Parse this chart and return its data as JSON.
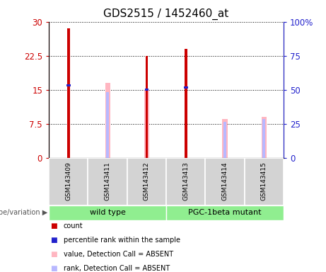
{
  "title": "GDS2515 / 1452460_at",
  "samples": [
    "GSM143409",
    "GSM143411",
    "GSM143412",
    "GSM143413",
    "GSM143414",
    "GSM143415"
  ],
  "count_values": [
    28.5,
    null,
    22.5,
    24.0,
    null,
    null
  ],
  "percentile_values": [
    16.0,
    null,
    15.0,
    15.5,
    null,
    null
  ],
  "absent_value_values": [
    null,
    16.5,
    15.0,
    null,
    8.5,
    9.0
  ],
  "absent_rank_values": [
    null,
    14.5,
    15.0,
    null,
    8.0,
    8.5
  ],
  "left_yticks": [
    0,
    7.5,
    15,
    22.5,
    30
  ],
  "left_yticklabels": [
    "0",
    "7.5",
    "15",
    "22.5",
    "30"
  ],
  "right_yticks": [
    0,
    25,
    50,
    75,
    100
  ],
  "right_yticklabels": [
    "0",
    "25",
    "50",
    "75",
    "100%"
  ],
  "ylim": [
    0,
    30
  ],
  "count_color": "#cc0000",
  "percentile_color": "#2222cc",
  "absent_value_color": "#ffb6c1",
  "absent_rank_color": "#b8b8ff",
  "axis_color_left": "#cc0000",
  "axis_color_right": "#2222cc",
  "title_fontsize": 11,
  "groups": [
    {
      "label": "wild type",
      "start": 0,
      "end": 2,
      "color": "#90EE90"
    },
    {
      "label": "PGC-1beta mutant",
      "start": 3,
      "end": 5,
      "color": "#90EE90"
    }
  ],
  "legend_items": [
    {
      "color": "#cc0000",
      "label": "count"
    },
    {
      "color": "#2222cc",
      "label": "percentile rank within the sample"
    },
    {
      "color": "#ffb6c1",
      "label": "value, Detection Call = ABSENT"
    },
    {
      "color": "#b8b8ff",
      "label": "rank, Detection Call = ABSENT"
    }
  ]
}
